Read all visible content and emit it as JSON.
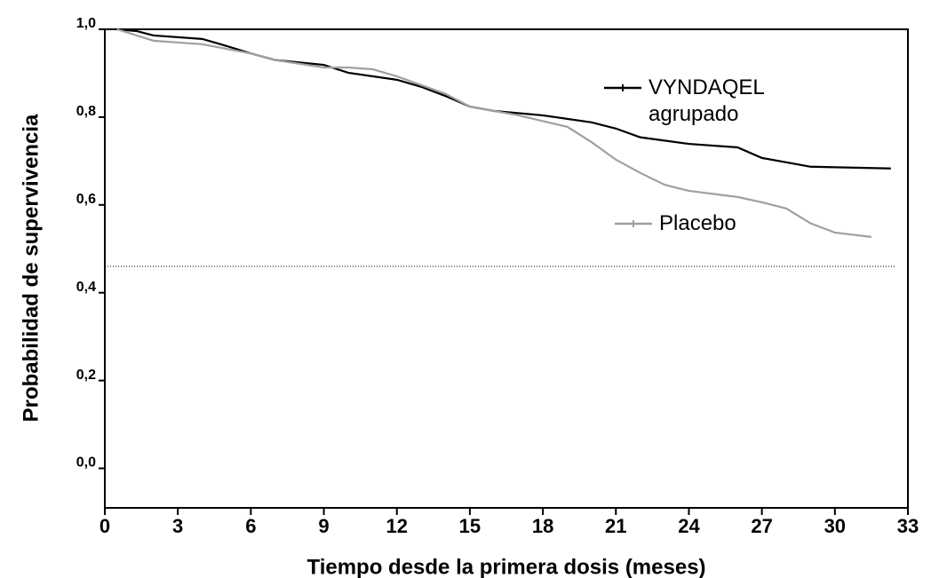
{
  "chart_data": {
    "type": "line",
    "x_label": "Tiempo desde la primera dosis (meses)",
    "y_label": "Probabilidad de supervivencia",
    "xlim": [
      0,
      33
    ],
    "xticks": [
      0,
      3,
      6,
      9,
      12,
      15,
      18,
      21,
      24,
      27,
      30,
      33
    ],
    "ylim": [
      -0.09,
      1.0
    ],
    "yticks": [
      {
        "value": 1.0,
        "label": "1,0"
      },
      {
        "value": 0.8,
        "label": "0,8"
      },
      {
        "value": 0.6,
        "label": "0,6"
      },
      {
        "value": 0.4,
        "label": "0,4"
      },
      {
        "value": 0.2,
        "label": "0,2"
      },
      {
        "value": 0.0,
        "label": "0,0"
      }
    ],
    "reference_line": 0.46,
    "series": [
      {
        "name": "VYNDAQEL agrupado",
        "color": "#000000",
        "x": [
          0.5,
          1.3,
          2,
          4,
          5,
          6,
          7,
          9,
          10,
          12,
          13,
          14,
          15,
          16,
          18,
          20,
          21,
          22,
          24,
          26,
          27,
          28,
          29,
          32.3
        ],
        "values": [
          1.0,
          0.996,
          0.986,
          0.978,
          0.962,
          0.945,
          0.93,
          0.919,
          0.901,
          0.885,
          0.869,
          0.848,
          0.824,
          0.814,
          0.804,
          0.788,
          0.774,
          0.754,
          0.739,
          0.731,
          0.707,
          0.697,
          0.687,
          0.683
        ]
      },
      {
        "name": "Placebo",
        "color": "#a0a0a0",
        "x": [
          0.5,
          2,
          4,
          6,
          7,
          9,
          10,
          11,
          12,
          13,
          14,
          15,
          17,
          19,
          20,
          21,
          22,
          23,
          24,
          26,
          27,
          28,
          29,
          30,
          31.5
        ],
        "values": [
          1.0,
          0.974,
          0.966,
          0.945,
          0.93,
          0.913,
          0.913,
          0.909,
          0.893,
          0.873,
          0.853,
          0.824,
          0.804,
          0.778,
          0.743,
          0.703,
          0.673,
          0.646,
          0.632,
          0.618,
          0.606,
          0.592,
          0.558,
          0.537,
          0.527
        ]
      }
    ]
  }
}
